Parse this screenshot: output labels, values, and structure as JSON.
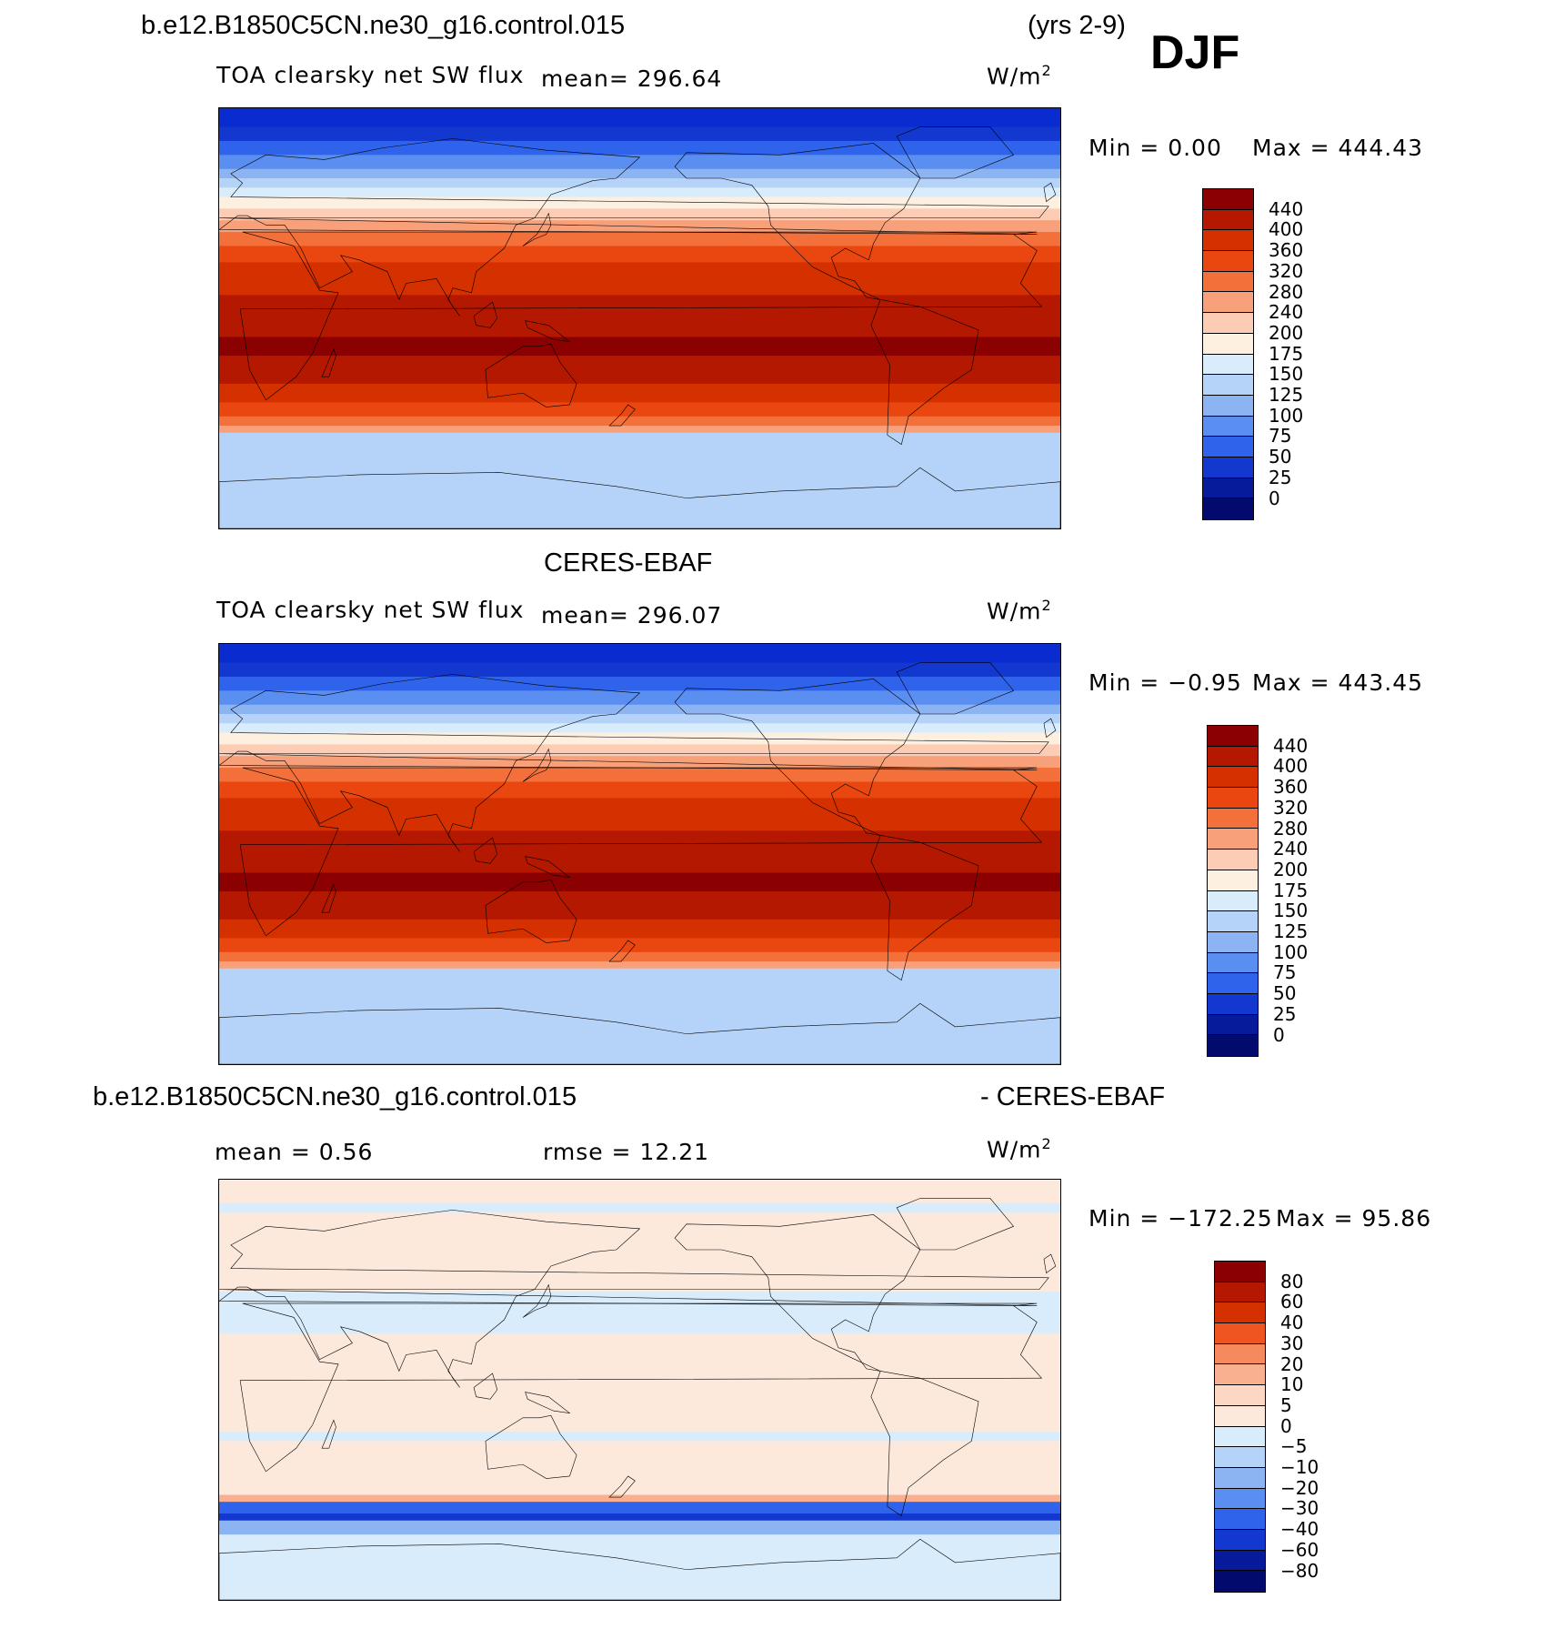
{
  "header": {
    "case_name": "b.e12.B1850C5CN.ne30_g16.control.015",
    "years": "(yrs 2-9)",
    "season": "DJF"
  },
  "panels": [
    {
      "id": "model",
      "title_left": "TOA clearsky net SW flux",
      "mean_text": "mean=  296.64",
      "units_base": "W/m",
      "units_sup": "2",
      "min_text": "Min  =     0.00",
      "max_text": "Max  =  444.43",
      "colorbar": {
        "levels": [
          "440",
          "400",
          "360",
          "320",
          "280",
          "240",
          "200",
          "175",
          "150",
          "125",
          "100",
          "75",
          "50",
          "25",
          "0"
        ],
        "colors": [
          "#8b0000",
          "#b51800",
          "#d53000",
          "#ea4610",
          "#f4703a",
          "#f8a07a",
          "#fccdb4",
          "#fdf0e0",
          "#d9ecfb",
          "#b5d3f8",
          "#8cb3f2",
          "#5a8ef0",
          "#2f63eb",
          "#1238d0",
          "#061a9c",
          "#020a6e"
        ]
      },
      "field": "model"
    },
    {
      "id": "obs",
      "subtitle": "CERES-EBAF",
      "title_left": "TOA clearsky net SW flux",
      "mean_text": "mean=  296.07",
      "units_base": "W/m",
      "units_sup": "2",
      "min_text": "Min  =   −0.95",
      "max_text": "Max  =  443.45",
      "colorbar": {
        "levels": [
          "440",
          "400",
          "360",
          "320",
          "280",
          "240",
          "200",
          "175",
          "150",
          "125",
          "100",
          "75",
          "50",
          "25",
          "0"
        ],
        "colors": [
          "#8b0000",
          "#b51800",
          "#d53000",
          "#ea4610",
          "#f4703a",
          "#f8a07a",
          "#fccdb4",
          "#fdf0e0",
          "#d9ecfb",
          "#b5d3f8",
          "#8cb3f2",
          "#5a8ef0",
          "#2f63eb",
          "#1238d0",
          "#061a9c",
          "#020a6e"
        ]
      },
      "field": "obs"
    },
    {
      "id": "diff",
      "subtitle_left": "b.e12.B1850C5CN.ne30_g16.control.015",
      "subtitle_right": "- CERES-EBAF",
      "mean_text": "mean  =     0.56",
      "rmse_text": "rmse  =    12.21",
      "units_base": "W/m",
      "units_sup": "2",
      "min_text": "Min  = −172.25",
      "max_text": "Max  =    95.86",
      "colorbar": {
        "levels": [
          "80",
          "60",
          "40",
          "30",
          "20",
          "10",
          "5",
          "0",
          "−5",
          "−10",
          "−20",
          "−30",
          "−40",
          "−60",
          "−80"
        ],
        "colors": [
          "#8b0000",
          "#b51800",
          "#d53000",
          "#ee5520",
          "#f48a5e",
          "#f8b090",
          "#fcd8c4",
          "#fde9dc",
          "#d9ecfb",
          "#b5d3f8",
          "#8cb3f2",
          "#5a8ef0",
          "#2f63eb",
          "#1238d0",
          "#061a9c",
          "#020a6e"
        ]
      },
      "field": "diff"
    }
  ]
}
